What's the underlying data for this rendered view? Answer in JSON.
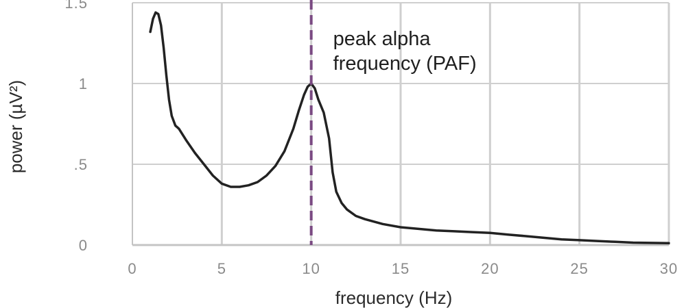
{
  "chart_data": {
    "type": "line",
    "xlabel": "frequency (Hz)",
    "ylabel": "power (µV²)",
    "xlim": [
      0,
      30
    ],
    "ylim": [
      0,
      1.5
    ],
    "x_ticks": [
      0,
      5,
      10,
      15,
      20,
      25,
      30
    ],
    "x_tick_labels": [
      "0",
      "5",
      "10",
      "15",
      "20",
      "25",
      "30"
    ],
    "y_ticks": [
      0,
      0.5,
      1,
      1.5
    ],
    "y_tick_labels": [
      "0",
      ".5",
      "1",
      "1.5"
    ],
    "grid": true,
    "series": [
      {
        "color": "#222222",
        "x": [
          1.0,
          1.15,
          1.3,
          1.45,
          1.6,
          1.75,
          1.9,
          2.05,
          2.2,
          2.4,
          2.6,
          3.0,
          3.5,
          4.0,
          4.5,
          5.0,
          5.5,
          6.0,
          6.5,
          7.0,
          7.5,
          8.0,
          8.5,
          9.0,
          9.3,
          9.6,
          9.8,
          10.0,
          10.2,
          10.4,
          10.7,
          11.0,
          11.2,
          11.4,
          11.7,
          12.0,
          12.5,
          13.0,
          14.0,
          15.0,
          16.0,
          17.0,
          18.0,
          19.0,
          20.0,
          21.0,
          22.0,
          23.0,
          24.0,
          25.0,
          26.0,
          27.0,
          28.0,
          29.0,
          30.0
        ],
        "y": [
          1.32,
          1.4,
          1.44,
          1.43,
          1.36,
          1.22,
          1.05,
          0.9,
          0.8,
          0.74,
          0.72,
          0.65,
          0.57,
          0.5,
          0.43,
          0.38,
          0.36,
          0.36,
          0.37,
          0.39,
          0.43,
          0.49,
          0.58,
          0.72,
          0.83,
          0.93,
          0.98,
          1.0,
          0.97,
          0.9,
          0.82,
          0.66,
          0.45,
          0.33,
          0.26,
          0.22,
          0.18,
          0.16,
          0.13,
          0.11,
          0.1,
          0.09,
          0.085,
          0.08,
          0.075,
          0.065,
          0.055,
          0.045,
          0.035,
          0.03,
          0.025,
          0.02,
          0.015,
          0.013,
          0.012
        ]
      }
    ],
    "markers": [
      {
        "x": 10,
        "style": "dashed",
        "color": "#7a4a82"
      }
    ],
    "annotation": {
      "lines": [
        "peak alpha",
        "frequency (PAF)"
      ]
    }
  }
}
